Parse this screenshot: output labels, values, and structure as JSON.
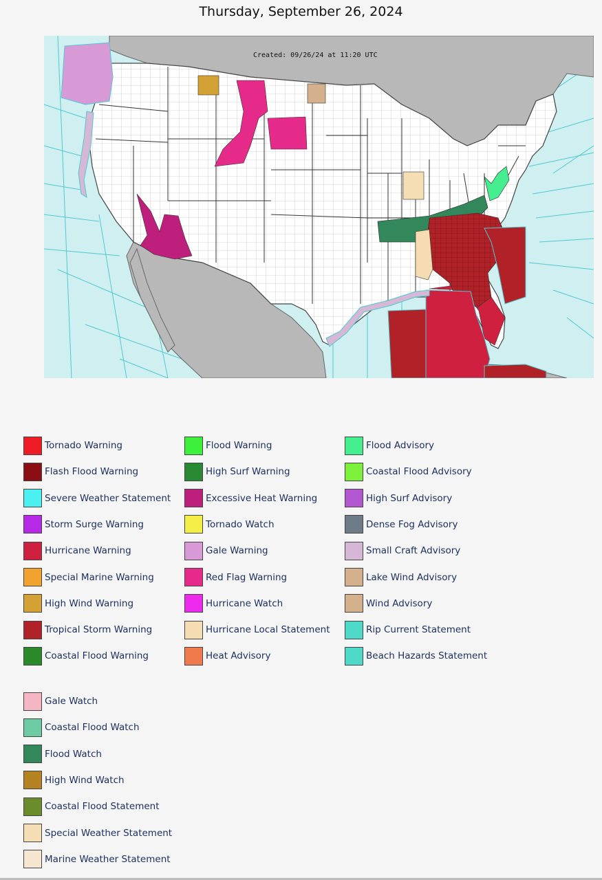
{
  "page": {
    "date": "Thursday, September 26, 2024"
  },
  "map": {
    "created_label": "Created: 09/26/24 at 11:20 UTC",
    "colors": {
      "ocean": "#cfeff1",
      "land": "#ffffff",
      "foreign_land": "#b8b8b8",
      "marine_zone_line": "#4fc9d1",
      "boundary": "#555555"
    }
  },
  "legend": {
    "columns": [
      [
        {
          "label": "Tornado Warning",
          "color": "#ee1c24"
        },
        {
          "label": "Flash Flood Warning",
          "color": "#8b0e12"
        },
        {
          "label": "Severe Weather Statement",
          "color": "#4bf0f0"
        },
        {
          "label": "Storm Surge Warning",
          "color": "#b42ae6"
        },
        {
          "label": "Hurricane Warning",
          "color": "#d02040"
        },
        {
          "label": "Special Marine Warning",
          "color": "#f2a22f"
        },
        {
          "label": "High Wind Warning",
          "color": "#d4a234"
        },
        {
          "label": "Tropical Storm Warning",
          "color": "#b02228"
        },
        {
          "label": "Coastal Flood Warning",
          "color": "#2a8a2a"
        }
      ],
      [
        {
          "label": "Flood Warning",
          "color": "#3cf03c"
        },
        {
          "label": "High Surf Warning",
          "color": "#2a8a34"
        },
        {
          "label": "Excessive Heat Warning",
          "color": "#bf1f7c"
        },
        {
          "label": "Tornado Watch",
          "color": "#f4ef48"
        },
        {
          "label": "Gale Warning",
          "color": "#d79ad6"
        },
        {
          "label": "Red Flag Warning",
          "color": "#e62a8a"
        },
        {
          "label": "Hurricane Watch",
          "color": "#ee2aee"
        },
        {
          "label": "Hurricane Local Statement",
          "color": "#f5dcb2"
        },
        {
          "label": "Heat Advisory",
          "color": "#f07a4e"
        }
      ],
      [
        {
          "label": "Flood Advisory",
          "color": "#45ef8f"
        },
        {
          "label": "Coastal Flood Advisory",
          "color": "#7cf03a"
        },
        {
          "label": "High Surf Advisory",
          "color": "#b458d2"
        },
        {
          "label": "Dense Fog Advisory",
          "color": "#6e7c8a"
        },
        {
          "label": "Small Craft Advisory",
          "color": "#d6b8d6"
        },
        {
          "label": "Lake Wind Advisory",
          "color": "#d4b08c"
        },
        {
          "label": "Wind Advisory",
          "color": "#d4b08c"
        },
        {
          "label": "Rip Current Statement",
          "color": "#4fd9c8"
        },
        {
          "label": "Beach Hazards Statement",
          "color": "#4fd9c8"
        }
      ]
    ],
    "extra": [
      {
        "label": "Gale Watch",
        "color": "#f4b6c2"
      },
      {
        "label": "Coastal Flood Watch",
        "color": "#6ccaa4"
      },
      {
        "label": "Flood Watch",
        "color": "#32885a"
      },
      {
        "label": "High Wind Watch",
        "color": "#b58222"
      },
      {
        "label": "Coastal Flood Statement",
        "color": "#6b8c2a"
      },
      {
        "label": "Special Weather Statement",
        "color": "#f5deb3"
      },
      {
        "label": "Marine Weather Statement",
        "color": "#f7e6cf"
      }
    ]
  }
}
